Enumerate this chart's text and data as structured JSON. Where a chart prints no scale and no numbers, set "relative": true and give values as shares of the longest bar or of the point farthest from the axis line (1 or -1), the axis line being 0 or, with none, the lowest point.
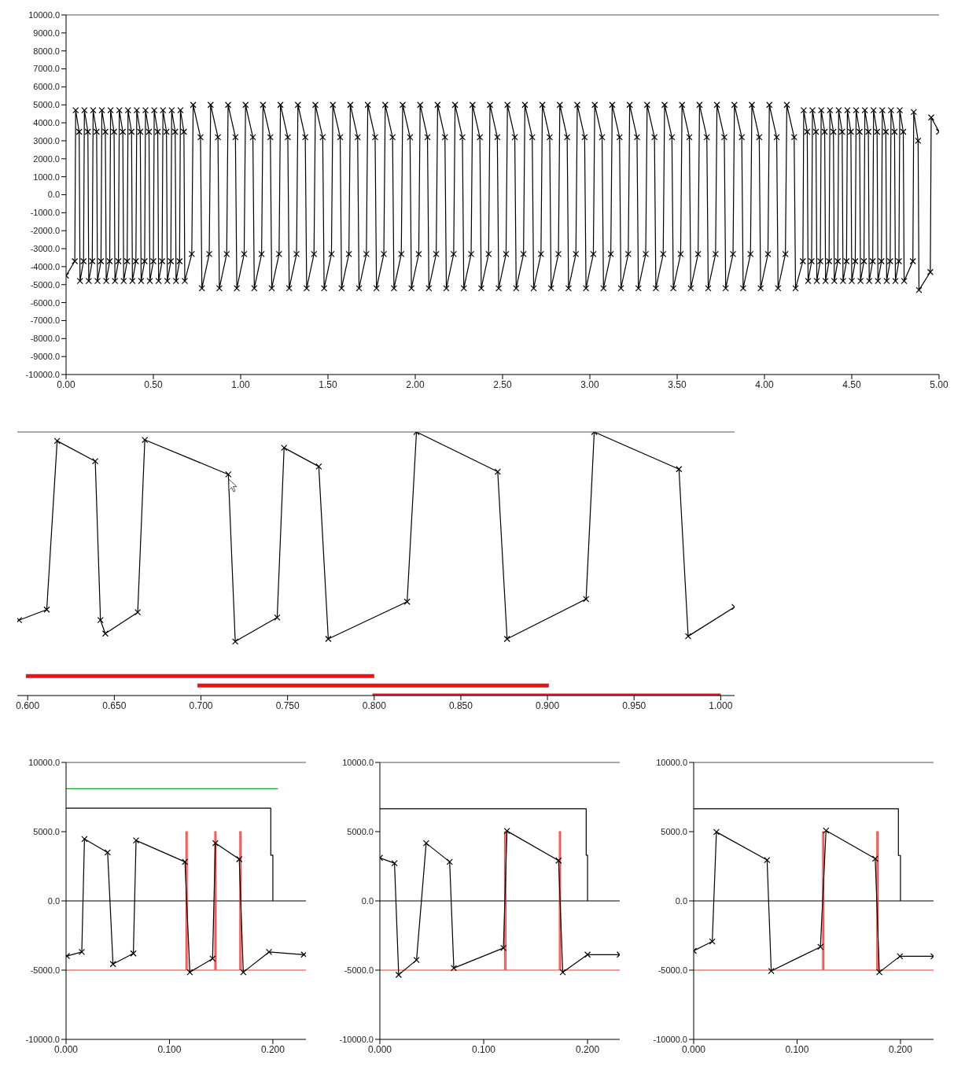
{
  "chart_data": [
    {
      "type": "line",
      "xlim": [
        0,
        5
      ],
      "ylim": [
        -10000,
        10000
      ],
      "xticks": [
        {
          "value": 0,
          "label": "0.00"
        },
        {
          "value": 0.5,
          "label": "0.50"
        },
        {
          "value": 1,
          "label": "1.00"
        },
        {
          "value": 1.5,
          "label": "1.50"
        },
        {
          "value": 2,
          "label": "2.00"
        },
        {
          "value": 2.5,
          "label": "2.50"
        },
        {
          "value": 3,
          "label": "3.00"
        },
        {
          "value": 3.5,
          "label": "3.50"
        },
        {
          "value": 4,
          "label": "4.00"
        },
        {
          "value": 4.5,
          "label": "4.50"
        },
        {
          "value": 5,
          "label": "5.00"
        }
      ],
      "yticks": [
        {
          "value": -10000,
          "label": "-10000.0"
        },
        {
          "value": -9000,
          "label": "-9000.0"
        },
        {
          "value": -8000,
          "label": "-8000.0"
        },
        {
          "value": -7000,
          "label": "-7000.0"
        },
        {
          "value": -6000,
          "label": "-6000.0"
        },
        {
          "value": -5000,
          "label": "-5000.0"
        },
        {
          "value": -4000,
          "label": "-4000.0"
        },
        {
          "value": -3000,
          "label": "-3000.0"
        },
        {
          "value": -2000,
          "label": "-2000.0"
        },
        {
          "value": -1000,
          "label": "-1000.0"
        },
        {
          "value": 0,
          "label": "0.0"
        },
        {
          "value": 1000,
          "label": "1000.0"
        },
        {
          "value": 2000,
          "label": "2000.0"
        },
        {
          "value": 3000,
          "label": "3000.0"
        },
        {
          "value": 4000,
          "label": "4000.0"
        },
        {
          "value": 5000,
          "label": "5000.0"
        },
        {
          "value": 6000,
          "label": "6000.0"
        },
        {
          "value": 7000,
          "label": "7000.0"
        },
        {
          "value": 8000,
          "label": "8000.0"
        },
        {
          "value": 9000,
          "label": "9000.0"
        },
        {
          "value": 10000,
          "label": "10000.0"
        }
      ],
      "series": [
        {
          "color": "#000000",
          "marker": "cross",
          "x": [
            0,
            0.05,
            0.055,
            0.075,
            0.08,
            0.1,
            0.105,
            0.125,
            0.13,
            0.15,
            0.155,
            0.175,
            0.18,
            0.2,
            0.205,
            0.225,
            0.23,
            0.25,
            0.255,
            0.275,
            0.28,
            0.3,
            0.305,
            0.325,
            0.33,
            0.35,
            0.355,
            0.375,
            0.38,
            0.4,
            0.405,
            0.425,
            0.43,
            0.45,
            0.455,
            0.475,
            0.48,
            0.5,
            0.505,
            0.525,
            0.53,
            0.55,
            0.555,
            0.575,
            0.58,
            0.6,
            0.605,
            0.625,
            0.63,
            0.65,
            0.655,
            0.675,
            0.68,
            0.72,
            0.728,
            0.77,
            0.778,
            0.82,
            0.828,
            0.87,
            0.878,
            0.92,
            0.928,
            0.97,
            0.978,
            1.02,
            1.028,
            1.07,
            1.078,
            1.12,
            1.128,
            1.17,
            1.178,
            1.22,
            1.228,
            1.27,
            1.278,
            1.32,
            1.328,
            1.37,
            1.378,
            1.42,
            1.428,
            1.47,
            1.478,
            1.52,
            1.528,
            1.57,
            1.578,
            1.62,
            1.628,
            1.67,
            1.678,
            1.72,
            1.728,
            1.77,
            1.778,
            1.82,
            1.828,
            1.87,
            1.878,
            1.92,
            1.928,
            1.97,
            1.978,
            2.02,
            2.028,
            2.07,
            2.078,
            2.12,
            2.128,
            2.17,
            2.178,
            2.22,
            2.228,
            2.27,
            2.278,
            2.32,
            2.328,
            2.37,
            2.378,
            2.42,
            2.428,
            2.47,
            2.478,
            2.52,
            2.528,
            2.57,
            2.578,
            2.62,
            2.628,
            2.67,
            2.678,
            2.72,
            2.728,
            2.77,
            2.778,
            2.82,
            2.828,
            2.87,
            2.878,
            2.92,
            2.928,
            2.97,
            2.978,
            3.02,
            3.028,
            3.07,
            3.078,
            3.12,
            3.128,
            3.17,
            3.178,
            3.22,
            3.228,
            3.27,
            3.278,
            3.32,
            3.328,
            3.37,
            3.378,
            3.42,
            3.428,
            3.47,
            3.478,
            3.52,
            3.528,
            3.57,
            3.578,
            3.62,
            3.628,
            3.67,
            3.678,
            3.72,
            3.728,
            3.77,
            3.778,
            3.82,
            3.828,
            3.87,
            3.878,
            3.92,
            3.928,
            3.97,
            3.978,
            4.02,
            4.028,
            4.07,
            4.078,
            4.12,
            4.128,
            4.17,
            4.178,
            4.22,
            4.225,
            4.245,
            4.25,
            4.27,
            4.275,
            4.295,
            4.3,
            4.32,
            4.325,
            4.345,
            4.35,
            4.37,
            4.375,
            4.395,
            4.4,
            4.42,
            4.425,
            4.445,
            4.45,
            4.47,
            4.475,
            4.495,
            4.5,
            4.52,
            4.525,
            4.545,
            4.55,
            4.57,
            4.575,
            4.595,
            4.6,
            4.62,
            4.625,
            4.645,
            4.65,
            4.67,
            4.675,
            4.695,
            4.7,
            4.72,
            4.725,
            4.745,
            4.75,
            4.77,
            4.775,
            4.795,
            4.8,
            4.85,
            4.855,
            4.88,
            4.885,
            4.95,
            4.955,
            5
          ],
          "values": [
            -4500,
            -3700,
            4700,
            3500,
            -4800,
            -3700,
            4700,
            3500,
            -4800,
            -3700,
            4700,
            3500,
            -4800,
            -3700,
            4700,
            3500,
            -4800,
            -3700,
            4700,
            3500,
            -4800,
            -3700,
            4700,
            3500,
            -4800,
            -3700,
            4700,
            3500,
            -4800,
            -3700,
            4700,
            3500,
            -4800,
            -3700,
            4700,
            3500,
            -4800,
            -3700,
            4700,
            3500,
            -4800,
            -3700,
            4700,
            3500,
            -4800,
            -3700,
            4700,
            3500,
            -4800,
            -3700,
            4700,
            3500,
            -4800,
            -3300,
            5000,
            3200,
            -5200,
            -3300,
            5000,
            3200,
            -5200,
            -3300,
            5000,
            3200,
            -5200,
            -3300,
            5000,
            3200,
            -5200,
            -3300,
            5000,
            3200,
            -5200,
            -3300,
            5000,
            3200,
            -5200,
            -3300,
            5000,
            3200,
            -5200,
            -3300,
            5000,
            3200,
            -5200,
            -3300,
            5000,
            3200,
            -5200,
            -3300,
            5000,
            3200,
            -5200,
            -3300,
            5000,
            3200,
            -5200,
            -3300,
            5000,
            3200,
            -5200,
            -3300,
            5000,
            3200,
            -5200,
            -3300,
            5000,
            3200,
            -5200,
            -3300,
            5000,
            3200,
            -5200,
            -3300,
            5000,
            3200,
            -5200,
            -3300,
            5000,
            3200,
            -5200,
            -3300,
            5000,
            3200,
            -5200,
            -3300,
            5000,
            3200,
            -5200,
            -3300,
            5000,
            3200,
            -5200,
            -3300,
            5000,
            3200,
            -5200,
            -3300,
            5000,
            3200,
            -5200,
            -3300,
            5000,
            3200,
            -5200,
            -3300,
            5000,
            3200,
            -5200,
            -3300,
            5000,
            3200,
            -5200,
            -3300,
            5000,
            3200,
            -5200,
            -3300,
            5000,
            3200,
            -5200,
            -3300,
            5000,
            3200,
            -5200,
            -3300,
            5000,
            3200,
            -5200,
            -3300,
            5000,
            3200,
            -5200,
            -3300,
            5000,
            3200,
            -5200,
            -3300,
            5000,
            3200,
            -5200,
            -3300,
            5000,
            3200,
            -5200,
            -3300,
            5000,
            3200,
            -5200,
            -3300,
            5000,
            3200,
            -5200,
            -3700,
            4700,
            3500,
            -4800,
            -3700,
            4700,
            3500,
            -4800,
            -3700,
            4700,
            3500,
            -4800,
            -3700,
            4700,
            3500,
            -4800,
            -3700,
            4700,
            3500,
            -4800,
            -3700,
            4700,
            3500,
            -4800,
            -3700,
            4700,
            3500,
            -4800,
            -3700,
            4700,
            3500,
            -4800,
            -3700,
            4700,
            3500,
            -4800,
            -3700,
            4700,
            3500,
            -4800,
            -3700,
            4700,
            3500,
            -4800,
            -3700,
            4700,
            3500,
            -4800,
            -3700,
            4600,
            3000,
            -5300,
            -4300,
            4300,
            3500
          ]
        }
      ]
    },
    {
      "type": "line",
      "relative": true,
      "xlim": [
        0.594,
        1.008
      ],
      "xticks": [
        {
          "value": 0.6,
          "label": "0.600"
        },
        {
          "value": 0.65,
          "label": "0.650"
        },
        {
          "value": 0.7,
          "label": "0.700"
        },
        {
          "value": 0.75,
          "label": "0.750"
        },
        {
          "value": 0.8,
          "label": "0.800"
        },
        {
          "value": 0.85,
          "label": "0.850"
        },
        {
          "value": 0.9,
          "label": "0.900"
        },
        {
          "value": 0.95,
          "label": "0.950"
        },
        {
          "value": 1,
          "label": "1.000"
        }
      ],
      "series": [
        {
          "color": "#000000",
          "marker": "cross",
          "x": [
            0.595,
            0.611,
            0.617,
            0.639,
            0.642,
            0.6448,
            0.6635,
            0.6676,
            0.7158,
            0.7198,
            0.744,
            0.748,
            0.768,
            0.7735,
            0.819,
            0.8244,
            0.8713,
            0.8767,
            0.9223,
            0.927,
            0.9759,
            0.9812,
            1.008
          ],
          "values": [
            0.286,
            0.326,
            0.966,
            0.889,
            0.286,
            0.235,
            0.316,
            0.97,
            0.839,
            0.205,
            0.296,
            0.94,
            0.869,
            0.215,
            0.356,
            1,
            0.849,
            0.215,
            0.366,
            1,
            0.859,
            0.225,
            0.336
          ]
        },
        {
          "color": "#e8141c",
          "marker": "none",
          "x": [
            0.599,
            0.8
          ],
          "values": [
            0.074,
            0.074
          ]
        },
        {
          "color": "#e8141c",
          "marker": "none",
          "x": [
            0.698,
            0.9008
          ],
          "values": [
            0.038,
            0.038
          ]
        },
        {
          "color": "#e8141c",
          "marker": "none",
          "x": [
            0.799,
            1
          ],
          "values": [
            0,
            0
          ]
        }
      ]
    },
    {
      "type": "line",
      "xlim": [
        0,
        0.232
      ],
      "ylim": [
        -10000,
        10000
      ],
      "xticks": [
        {
          "value": 0,
          "label": "0.000"
        },
        {
          "value": 0.1,
          "label": "0.100"
        },
        {
          "value": 0.2,
          "label": "0.200"
        }
      ],
      "yticks": [
        {
          "value": -10000,
          "label": "-10000.0"
        },
        {
          "value": -5000,
          "label": "-5000.0"
        },
        {
          "value": 0,
          "label": "0.0"
        },
        {
          "value": 5000,
          "label": "5000.0"
        },
        {
          "value": 10000,
          "label": "10000.0"
        }
      ],
      "ref_lines": [
        {
          "axis": "y",
          "value": 0,
          "color": "#000000"
        }
      ],
      "series": [
        {
          "color": "#1aa832",
          "marker": "none",
          "x": [
            0,
            0.205
          ],
          "values": [
            8100,
            8100
          ]
        },
        {
          "color": "#000000",
          "marker": "none",
          "x": [
            0,
            0.198,
            0.198,
            0.2,
            0.2
          ],
          "values": [
            6700,
            6700,
            3300,
            3300,
            0
          ]
        },
        {
          "color": "#ff3030",
          "marker": "none",
          "x": [
            0,
            0.116,
            0.116,
            0.1172,
            0.1172,
            0.1438,
            0.1438,
            0.145,
            0.145,
            0.168,
            0.168,
            0.1692,
            0.1692,
            0.232
          ],
          "values": [
            -5000,
            -5000,
            5000,
            5000,
            -5000,
            -5000,
            5000,
            5000,
            -5000,
            -5000,
            5000,
            5000,
            -5000,
            -5000
          ]
        },
        {
          "color": "#000000",
          "marker": "cross",
          "x": [
            0.0008,
            0.0152,
            0.0178,
            0.0402,
            0.0454,
            0.0651,
            0.0677,
            0.115,
            0.1197,
            0.1417,
            0.1444,
            0.1675,
            0.1714,
            0.1963,
            0.23
          ],
          "values": [
            -3980,
            -3690,
            4470,
            3500,
            -4560,
            -3790,
            4370,
            2820,
            -5150,
            -4170,
            4170,
            3010,
            -5150,
            -3690,
            -3880
          ]
        }
      ]
    },
    {
      "type": "line",
      "xlim": [
        0,
        0.231
      ],
      "ylim": [
        -10000,
        10000
      ],
      "xticks": [
        {
          "value": 0,
          "label": "0.000"
        },
        {
          "value": 0.1,
          "label": "0.100"
        },
        {
          "value": 0.2,
          "label": "0.200"
        }
      ],
      "yticks": [
        {
          "value": -10000,
          "label": "-10000.0"
        },
        {
          "value": -5000,
          "label": "-5000.0"
        },
        {
          "value": 0,
          "label": "0.0"
        },
        {
          "value": 5000,
          "label": "5000.0"
        },
        {
          "value": 10000,
          "label": "10000.0"
        }
      ],
      "ref_lines": [
        {
          "axis": "y",
          "value": 0,
          "color": "#000000"
        }
      ],
      "series": [
        {
          "color": "#000000",
          "marker": "none",
          "x": [
            0,
            0.1987,
            0.1987,
            0.2,
            0.2
          ],
          "values": [
            6650,
            6650,
            3300,
            3300,
            0
          ]
        },
        {
          "color": "#ff3030",
          "marker": "none",
          "x": [
            0,
            0.1202,
            0.1202,
            0.1214,
            0.1214,
            0.1728,
            0.1728,
            0.174,
            0.174,
            0.231
          ],
          "values": [
            -5000,
            -5000,
            5000,
            5000,
            -5000,
            -5000,
            5000,
            5000,
            -5000,
            -5000
          ]
        },
        {
          "color": "#000000",
          "marker": "cross",
          "x": [
            0,
            0.0141,
            0.0181,
            0.0353,
            0.0446,
            0.0672,
            0.0712,
            0.119,
            0.1224,
            0.1721,
            0.1761,
            0.2,
            0.231
          ],
          "values": [
            3110,
            2720,
            -5340,
            -4270,
            4170,
            2820,
            -4850,
            -3400,
            5050,
            2910,
            -5150,
            -3880,
            -3880
          ]
        }
      ]
    },
    {
      "type": "line",
      "xlim": [
        0,
        0.232
      ],
      "ylim": [
        -10000,
        10000
      ],
      "xticks": [
        {
          "value": 0,
          "label": "0.000"
        },
        {
          "value": 0.1,
          "label": "0.100"
        },
        {
          "value": 0.2,
          "label": "0.200"
        }
      ],
      "yticks": [
        {
          "value": -10000,
          "label": "-10000.0"
        },
        {
          "value": -5000,
          "label": "-5000.0"
        },
        {
          "value": 0,
          "label": "0.0"
        },
        {
          "value": 5000,
          "label": "5000.0"
        },
        {
          "value": 10000,
          "label": "10000.0"
        }
      ],
      "ref_lines": [
        {
          "axis": "y",
          "value": 0,
          "color": "#000000"
        }
      ],
      "series": [
        {
          "color": "#000000",
          "marker": "none",
          "x": [
            0,
            0.198,
            0.198,
            0.2,
            0.2
          ],
          "values": [
            6660,
            6660,
            3280,
            3280,
            0
          ]
        },
        {
          "color": "#ff3030",
          "marker": "none",
          "x": [
            0,
            0.1247,
            0.1247,
            0.1259,
            0.1259,
            0.1771,
            0.1771,
            0.1783,
            0.1783,
            0.232
          ],
          "values": [
            -5000,
            -5000,
            5000,
            5000,
            -5000,
            -5000,
            5000,
            5000,
            -5000,
            -5000
          ]
        },
        {
          "color": "#000000",
          "marker": "cross",
          "x": [
            0,
            0.018,
            0.022,
            0.071,
            0.075,
            0.1226,
            0.128,
            0.1756,
            0.1796,
            0.1995,
            0.232
          ],
          "values": [
            -3610,
            -2930,
            4980,
            2950,
            -5060,
            -3320,
            5080,
            3050,
            -5150,
            -4000,
            -4000
          ]
        }
      ]
    }
  ]
}
